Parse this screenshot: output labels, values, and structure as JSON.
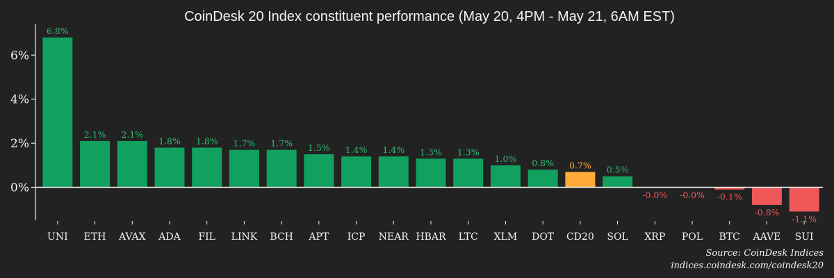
{
  "chart_data": {
    "type": "bar",
    "title": "CoinDesk 20 Index constituent performance (May 20, 4PM - May 21, 6AM EST)",
    "xlabel": "",
    "ylabel": "",
    "categories": [
      "UNI",
      "ETH",
      "AVAX",
      "ADA",
      "FIL",
      "LINK",
      "BCH",
      "APT",
      "ICP",
      "NEAR",
      "HBAR",
      "LTC",
      "XLM",
      "DOT",
      "CD20",
      "SOL",
      "XRP",
      "POL",
      "BTC",
      "AAVE",
      "SUI"
    ],
    "values": [
      6.8,
      2.1,
      2.1,
      1.8,
      1.8,
      1.7,
      1.7,
      1.5,
      1.4,
      1.4,
      1.3,
      1.3,
      1.0,
      0.8,
      0.7,
      0.5,
      -0.02,
      -0.02,
      -0.1,
      -0.8,
      -1.1
    ],
    "data_labels": [
      "6.8%",
      "2.1%",
      "2.1%",
      "1.8%",
      "1.8%",
      "1.7%",
      "1.7%",
      "1.5%",
      "1.4%",
      "1.4%",
      "1.3%",
      "1.3%",
      "1.0%",
      "0.8%",
      "0.7%",
      "0.5%",
      "-0.0%",
      "-0.0%",
      "-0.1%",
      "-0.8%",
      "-1.1%"
    ],
    "ylim": [
      -1.5,
      7.4
    ],
    "yticks": [
      0,
      2,
      4,
      6
    ],
    "ytick_labels": [
      "0%",
      "2%",
      "4%",
      "6%"
    ],
    "highlight_category": "CD20",
    "grid": false,
    "legend": "none",
    "colors": {
      "positive": "#12a05e",
      "negative": "#ef5858",
      "highlight": "#ffaa3b",
      "positive_label": "#2ebd75",
      "negative_label": "#ef5858",
      "highlight_label": "#ffaa3b",
      "axis": "#f2f2f2",
      "background": "#222222"
    }
  },
  "source": {
    "line1": "Source: CoinDesk Indices",
    "line2": "indices.coindesk.com/coindesk20"
  }
}
